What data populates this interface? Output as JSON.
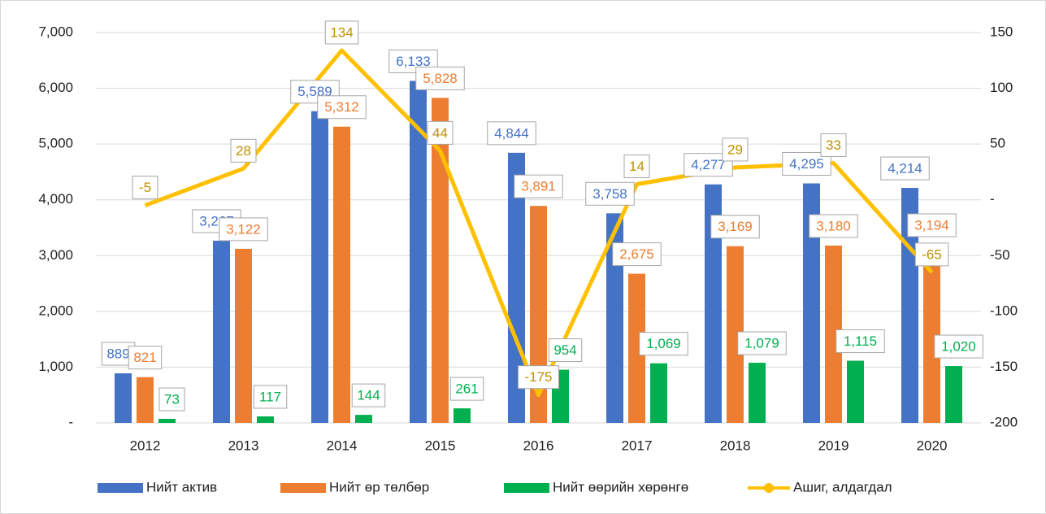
{
  "chart_data": {
    "type": "bar",
    "categories": [
      "2012",
      "2013",
      "2014",
      "2015",
      "2016",
      "2017",
      "2018",
      "2019",
      "2020"
    ],
    "series": [
      {
        "name": "Нийт актив",
        "color": "#4472c4",
        "values": [
          889,
          3267,
          5589,
          6133,
          4844,
          3758,
          4277,
          4295,
          4214
        ],
        "value_labels": [
          "889",
          "3,267",
          "5,589",
          "6,133",
          "4,844",
          "3,758",
          "4,277",
          "4,295",
          "4,214"
        ]
      },
      {
        "name": "Нийт өр төлбөр",
        "color": "#ed7d31",
        "values": [
          821,
          3122,
          5312,
          5828,
          3891,
          2675,
          3169,
          3180,
          3194
        ],
        "value_labels": [
          "821",
          "3,122",
          "5,312",
          "5,828",
          "3,891",
          "2,675",
          "3,169",
          "3,180",
          "3,194"
        ]
      },
      {
        "name": "Нийт өөрийн хөрөнгө",
        "color": "#00b050",
        "values": [
          73,
          117,
          144,
          261,
          954,
          1069,
          1079,
          1115,
          1020
        ],
        "value_labels": [
          "73",
          "117",
          "144",
          "261",
          "954",
          "1,069",
          "1,079",
          "1,115",
          "1,020"
        ]
      },
      {
        "name": "Ашиг, алдагдал",
        "color": "#ffc000",
        "type": "line",
        "axis": "y2",
        "label_color": "#bf9000",
        "values": [
          -5,
          28,
          134,
          44,
          -175,
          14,
          29,
          33,
          -65
        ]
      }
    ],
    "ylim": [
      0,
      7000
    ],
    "yticks": [
      {
        "value": 0,
        "label": "-"
      },
      {
        "value": 1000,
        "label": "1,000"
      },
      {
        "value": 2000,
        "label": "2,000"
      },
      {
        "value": 3000,
        "label": "3,000"
      },
      {
        "value": 4000,
        "label": "4,000"
      },
      {
        "value": 5000,
        "label": "5,000"
      },
      {
        "value": 6000,
        "label": "6,000"
      },
      {
        "value": 7000,
        "label": "7,000"
      }
    ],
    "y2lim": [
      -200,
      150
    ],
    "y2ticks": [
      -200,
      -150,
      -100,
      -50,
      {
        "value": 0,
        "label": "-"
      },
      50,
      100,
      150
    ],
    "grid": true,
    "legend": "bottom"
  }
}
